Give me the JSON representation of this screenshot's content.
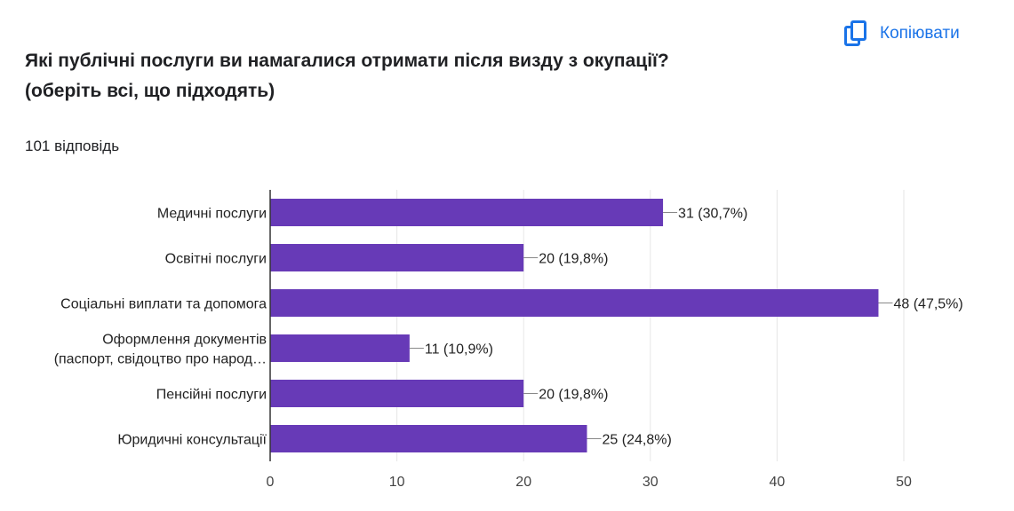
{
  "header": {
    "title_line1": "Які публічні послуги ви намагалися отримати після визду з окупації?",
    "title_line2": "(оберіть всі, що підходять)",
    "responses": "101 відповідь",
    "copy_label": "Копіювати",
    "copy_icon": "copy-icon",
    "accent_color": "#1a73e8"
  },
  "chart_data": {
    "type": "bar",
    "orientation": "horizontal",
    "categories": [
      [
        "Медичні послуги"
      ],
      [
        "Освітні послуги"
      ],
      [
        "Соціальні виплати та допомога"
      ],
      [
        "Оформлення документів",
        "(паспорт, свідоцтво про народ…"
      ],
      [
        "Пенсійні послуги"
      ],
      [
        "Юридичні консультації"
      ]
    ],
    "values": [
      31,
      20,
      48,
      11,
      20,
      25
    ],
    "value_labels": [
      "31 (30,7%)",
      "20 (19,8%)",
      "48 (47,5%)",
      "11 (10,9%)",
      "20 (19,8%)",
      "25 (24,8%)"
    ],
    "xlim": [
      0,
      50
    ],
    "xticks": [
      0,
      10,
      20,
      30,
      40,
      50
    ],
    "grid": true,
    "bar_color": "#673ab7"
  }
}
